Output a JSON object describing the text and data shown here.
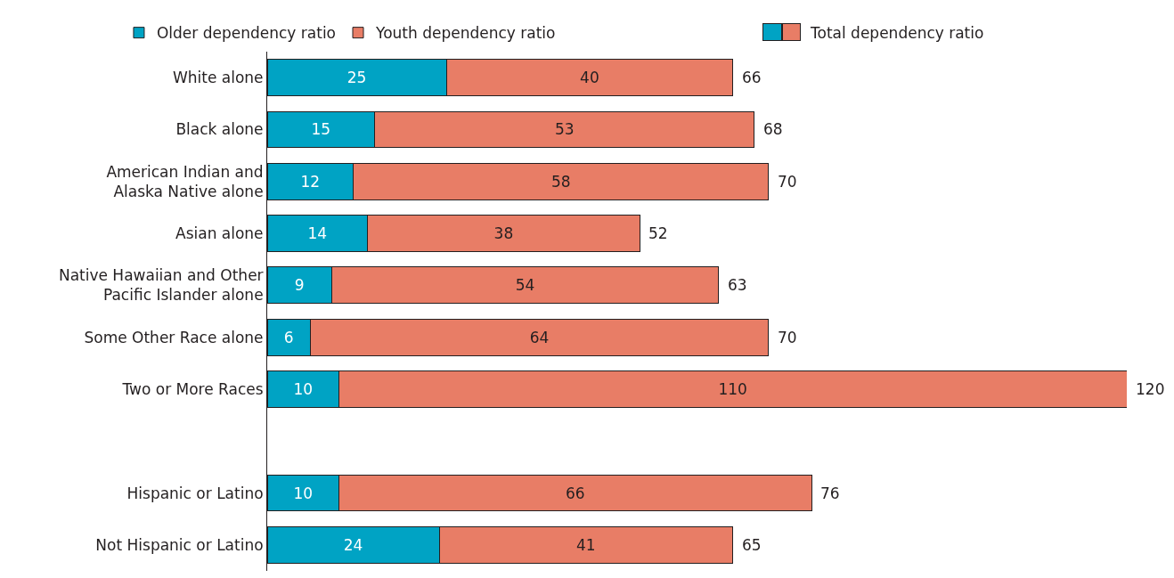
{
  "chart_data": {
    "type": "bar",
    "orientation": "horizontal",
    "stacked": true,
    "categories": [
      "White alone",
      "Black alone",
      "American Indian and Alaska Native alone",
      "Asian alone",
      "Native Hawaiian and Other Pacific Islander alone",
      "Some Other Race alone",
      "Two or More Races",
      null,
      "Hispanic or Latino",
      "Not Hispanic or Latino"
    ],
    "series": [
      {
        "name": "Older dependency ratio",
        "color": "#00a3c4",
        "values": [
          25,
          15,
          12,
          14,
          9,
          6,
          10,
          null,
          10,
          24
        ]
      },
      {
        "name": "Youth dependency ratio",
        "color": "#e87d66",
        "values": [
          40,
          53,
          58,
          38,
          54,
          64,
          110,
          null,
          66,
          41
        ]
      }
    ],
    "totals": [
      "66",
      "68",
      "70",
      "52",
      "63",
      "70",
      "120",
      null,
      "76",
      "65"
    ],
    "annotations": [
      "Total dependency ratio"
    ],
    "data_labels": true,
    "xlim": [
      0,
      120
    ],
    "tick_labels": "y",
    "grid": false,
    "legend": "top"
  }
}
